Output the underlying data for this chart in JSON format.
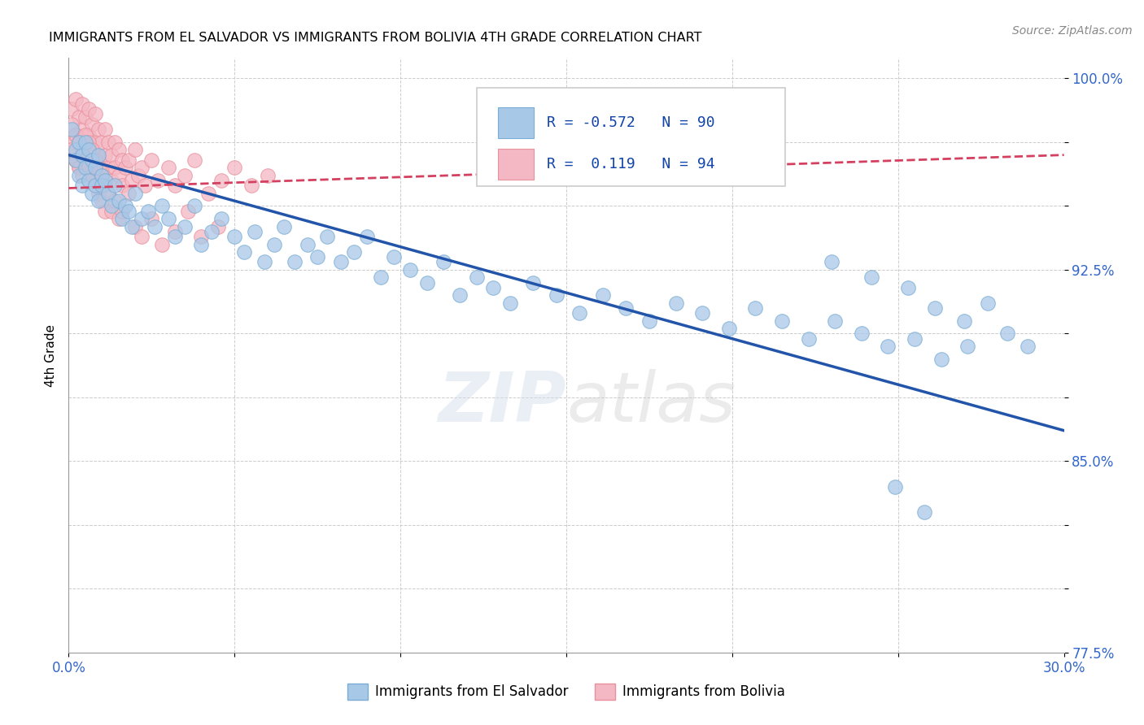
{
  "title": "IMMIGRANTS FROM EL SALVADOR VS IMMIGRANTS FROM BOLIVIA 4TH GRADE CORRELATION CHART",
  "source": "Source: ZipAtlas.com",
  "ylabel": "4th Grade",
  "x_min": 0.0,
  "x_max": 0.3,
  "y_min": 0.775,
  "y_max": 1.008,
  "x_ticks": [
    0.0,
    0.05,
    0.1,
    0.15,
    0.2,
    0.25,
    0.3
  ],
  "x_tick_labels": [
    "0.0%",
    "",
    "",
    "",
    "",
    "",
    "30.0%"
  ],
  "y_ticks": [
    0.775,
    0.8,
    0.825,
    0.85,
    0.875,
    0.9,
    0.925,
    0.95,
    0.975,
    1.0
  ],
  "y_tick_labels": [
    "77.5%",
    "",
    "",
    "85.0%",
    "",
    "",
    "92.5%",
    "",
    "",
    "100.0%"
  ],
  "grid_color": "#cccccc",
  "background_color": "#ffffff",
  "blue_color": "#a8c8e8",
  "blue_edge_color": "#7aadd4",
  "blue_line_color": "#2255aa",
  "pink_color": "#f4b8c4",
  "pink_edge_color": "#e8909c",
  "pink_line_color": "#d44060",
  "R_blue": -0.572,
  "N_blue": 90,
  "R_pink": 0.119,
  "N_pink": 94,
  "blue_label": "Immigrants from El Salvador",
  "pink_label": "Immigrants from Bolivia",
  "watermark_zip": "ZIP",
  "watermark_atlas": "atlas",
  "blue_line_x0": 0.0,
  "blue_line_y0": 0.97,
  "blue_line_x1": 0.3,
  "blue_line_y1": 0.862,
  "pink_line_x0": 0.0,
  "pink_line_y0": 0.957,
  "pink_line_x1": 0.3,
  "pink_line_y1": 0.97,
  "blue_scatter_x": [
    0.001,
    0.002,
    0.002,
    0.003,
    0.003,
    0.004,
    0.004,
    0.005,
    0.005,
    0.006,
    0.006,
    0.007,
    0.007,
    0.008,
    0.008,
    0.009,
    0.009,
    0.01,
    0.01,
    0.011,
    0.012,
    0.013,
    0.014,
    0.015,
    0.016,
    0.017,
    0.018,
    0.019,
    0.02,
    0.022,
    0.024,
    0.026,
    0.028,
    0.03,
    0.032,
    0.035,
    0.038,
    0.04,
    0.043,
    0.046,
    0.05,
    0.053,
    0.056,
    0.059,
    0.062,
    0.065,
    0.068,
    0.072,
    0.075,
    0.078,
    0.082,
    0.086,
    0.09,
    0.094,
    0.098,
    0.103,
    0.108,
    0.113,
    0.118,
    0.123,
    0.128,
    0.133,
    0.14,
    0.147,
    0.154,
    0.161,
    0.168,
    0.175,
    0.183,
    0.191,
    0.199,
    0.207,
    0.215,
    0.223,
    0.231,
    0.239,
    0.247,
    0.255,
    0.263,
    0.271,
    0.23,
    0.242,
    0.253,
    0.261,
    0.27,
    0.277,
    0.283,
    0.289,
    0.249,
    0.258
  ],
  "blue_scatter_y": [
    0.98,
    0.972,
    0.968,
    0.975,
    0.962,
    0.97,
    0.958,
    0.975,
    0.965,
    0.972,
    0.96,
    0.968,
    0.955,
    0.965,
    0.958,
    0.97,
    0.952,
    0.962,
    0.958,
    0.96,
    0.955,
    0.95,
    0.958,
    0.952,
    0.945,
    0.95,
    0.948,
    0.942,
    0.955,
    0.945,
    0.948,
    0.942,
    0.95,
    0.945,
    0.938,
    0.942,
    0.95,
    0.935,
    0.94,
    0.945,
    0.938,
    0.932,
    0.94,
    0.928,
    0.935,
    0.942,
    0.928,
    0.935,
    0.93,
    0.938,
    0.928,
    0.932,
    0.938,
    0.922,
    0.93,
    0.925,
    0.92,
    0.928,
    0.915,
    0.922,
    0.918,
    0.912,
    0.92,
    0.915,
    0.908,
    0.915,
    0.91,
    0.905,
    0.912,
    0.908,
    0.902,
    0.91,
    0.905,
    0.898,
    0.905,
    0.9,
    0.895,
    0.898,
    0.89,
    0.895,
    0.928,
    0.922,
    0.918,
    0.91,
    0.905,
    0.912,
    0.9,
    0.895,
    0.84,
    0.83
  ],
  "pink_scatter_x": [
    0.001,
    0.001,
    0.002,
    0.002,
    0.002,
    0.003,
    0.003,
    0.003,
    0.004,
    0.004,
    0.004,
    0.005,
    0.005,
    0.005,
    0.006,
    0.006,
    0.006,
    0.007,
    0.007,
    0.007,
    0.008,
    0.008,
    0.008,
    0.009,
    0.009,
    0.009,
    0.01,
    0.01,
    0.011,
    0.011,
    0.012,
    0.012,
    0.013,
    0.013,
    0.014,
    0.014,
    0.015,
    0.015,
    0.016,
    0.016,
    0.017,
    0.018,
    0.019,
    0.02,
    0.021,
    0.022,
    0.023,
    0.025,
    0.027,
    0.03,
    0.032,
    0.035,
    0.038,
    0.042,
    0.046,
    0.05,
    0.055,
    0.06,
    0.001,
    0.001,
    0.002,
    0.002,
    0.003,
    0.003,
    0.004,
    0.004,
    0.005,
    0.005,
    0.006,
    0.006,
    0.007,
    0.007,
    0.008,
    0.008,
    0.009,
    0.009,
    0.01,
    0.01,
    0.011,
    0.011,
    0.012,
    0.013,
    0.014,
    0.015,
    0.016,
    0.018,
    0.02,
    0.022,
    0.025,
    0.028,
    0.032,
    0.036,
    0.04,
    0.045
  ],
  "pink_scatter_y": [
    0.988,
    0.975,
    0.992,
    0.978,
    0.968,
    0.985,
    0.975,
    0.965,
    0.99,
    0.98,
    0.97,
    0.985,
    0.975,
    0.965,
    0.988,
    0.978,
    0.968,
    0.982,
    0.972,
    0.962,
    0.986,
    0.975,
    0.965,
    0.98,
    0.97,
    0.96,
    0.975,
    0.965,
    0.98,
    0.97,
    0.975,
    0.965,
    0.97,
    0.96,
    0.975,
    0.965,
    0.972,
    0.962,
    0.968,
    0.958,
    0.965,
    0.968,
    0.96,
    0.972,
    0.962,
    0.965,
    0.958,
    0.968,
    0.96,
    0.965,
    0.958,
    0.962,
    0.968,
    0.955,
    0.96,
    0.965,
    0.958,
    0.962,
    0.982,
    0.972,
    0.978,
    0.968,
    0.975,
    0.965,
    0.972,
    0.962,
    0.978,
    0.968,
    0.975,
    0.965,
    0.972,
    0.962,
    0.968,
    0.958,
    0.965,
    0.955,
    0.962,
    0.952,
    0.958,
    0.948,
    0.955,
    0.948,
    0.952,
    0.945,
    0.948,
    0.955,
    0.942,
    0.938,
    0.945,
    0.935,
    0.94,
    0.948,
    0.938,
    0.942
  ]
}
